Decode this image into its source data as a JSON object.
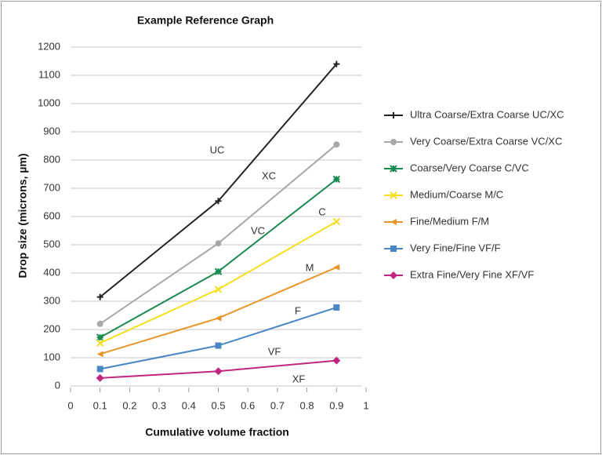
{
  "chart_data": {
    "type": "line",
    "title": "Example Reference Graph",
    "x_label": "Cumulative volume fraction",
    "y_label": "Drop size (microns, µm)",
    "x": [
      0.1,
      0.5,
      0.9
    ],
    "xlim": [
      0,
      1
    ],
    "xticks": [
      0,
      0.1,
      0.2,
      0.3,
      0.4,
      0.5,
      0.6,
      0.7,
      0.8,
      0.9,
      1
    ],
    "ylim": [
      0,
      1200
    ],
    "yticks": [
      0,
      100,
      200,
      300,
      400,
      500,
      600,
      700,
      800,
      900,
      1000,
      1100,
      1200
    ],
    "grid": true,
    "series": [
      {
        "name": "Ultra Coarse/Extra Coarse UC/XC",
        "color": "#222222",
        "marker": "plus",
        "values": [
          315,
          655,
          1140
        ]
      },
      {
        "name": "Very Coarse/Extra Coarse VC/XC",
        "color": "#a8a8a8",
        "marker": "circle",
        "values": [
          220,
          505,
          855
        ]
      },
      {
        "name": "Coarse/Very Coarse C/VC",
        "color": "#1a8a52",
        "marker": "asterisk",
        "values": [
          172,
          405,
          732
        ]
      },
      {
        "name": "Medium/Coarse M/C",
        "color": "#f3df1f",
        "marker": "x",
        "values": [
          152,
          342,
          582
        ]
      },
      {
        "name": "Fine/Medium F/M",
        "color": "#e8962a",
        "marker": "triangle",
        "values": [
          113,
          240,
          420
        ]
      },
      {
        "name": "Very Fine/Fine VF/F",
        "color": "#4a86c5",
        "marker": "square",
        "values": [
          60,
          143,
          278
        ]
      },
      {
        "name": "Extra Fine/Very Fine XF/VF",
        "color": "#c0267f",
        "marker": "diamond",
        "values": [
          28,
          52,
          90
        ]
      }
    ],
    "annotations": [
      "UC",
      "XC",
      "C",
      "VC",
      "M",
      "F",
      "VF",
      "XF"
    ]
  }
}
